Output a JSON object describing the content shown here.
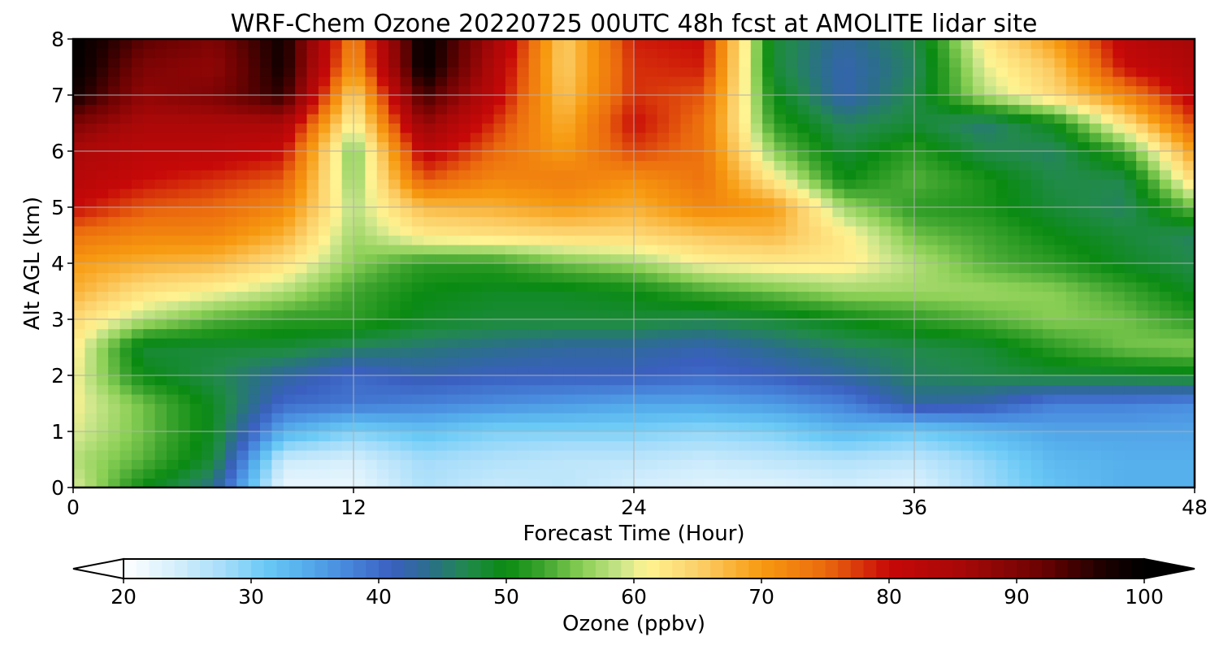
{
  "chart_data": {
    "type": "heatmap",
    "title": "WRF-Chem Ozone  20220725 00UTC 48h fcst at AMOLITE lidar site",
    "xlabel": "Forecast Time (Hour)",
    "ylabel": "Alt AGL (km)",
    "xlim": [
      0,
      48
    ],
    "ylim": [
      0,
      8
    ],
    "xticks": [
      "0",
      "12",
      "24",
      "36",
      "48"
    ],
    "yticks": [
      "0",
      "1",
      "2",
      "3",
      "4",
      "5",
      "6",
      "7",
      "8"
    ],
    "grid": true,
    "x": [
      0,
      3,
      6,
      9,
      12,
      15,
      18,
      21,
      24,
      27,
      30,
      33,
      36,
      39,
      42,
      45,
      48
    ],
    "y": [
      0,
      0.5,
      1,
      1.5,
      2,
      2.5,
      3,
      3.5,
      4,
      4.5,
      5,
      5.5,
      6,
      6.5,
      7,
      7.5,
      8
    ],
    "z": [
      [
        60,
        50,
        44,
        22,
        22,
        27,
        25,
        26,
        24,
        23,
        23,
        24,
        23,
        28,
        32,
        34,
        34
      ],
      [
        58,
        54,
        48,
        25,
        24,
        28,
        27,
        26,
        26,
        25,
        26,
        27,
        26,
        29,
        33,
        34,
        34
      ],
      [
        60,
        55,
        49,
        34,
        30,
        32,
        30,
        30,
        30,
        29,
        30,
        33,
        31,
        33,
        35,
        35,
        35
      ],
      [
        61,
        55,
        49,
        40,
        39,
        38,
        37,
        36,
        35,
        35,
        36,
        38,
        43,
        42,
        38,
        38,
        37
      ],
      [
        61,
        50,
        47,
        43,
        40,
        42,
        41,
        41,
        41,
        40,
        41,
        43,
        46,
        47,
        48,
        48,
        49
      ],
      [
        62,
        48,
        48,
        48,
        46,
        45,
        44,
        43,
        43,
        42,
        44,
        46,
        47,
        48,
        52,
        55,
        56
      ],
      [
        64,
        58,
        54,
        52,
        52,
        49,
        48,
        48,
        48,
        47,
        48,
        50,
        52,
        54,
        56,
        55,
        52
      ],
      [
        68,
        63,
        61,
        58,
        53,
        50,
        49,
        49,
        50,
        53,
        55,
        57,
        57,
        57,
        56,
        53,
        49
      ],
      [
        70,
        68,
        67,
        63,
        56,
        52,
        52,
        55,
        57,
        61,
        62,
        62,
        58,
        54,
        52,
        49,
        47
      ],
      [
        74,
        72,
        72,
        68,
        57,
        62,
        63,
        64,
        64,
        66,
        67,
        62,
        55,
        53,
        50,
        48,
        46
      ],
      [
        80,
        76,
        75,
        72,
        58,
        67,
        68,
        70,
        68,
        72,
        70,
        57,
        52,
        51,
        48,
        46,
        55
      ],
      [
        83,
        80,
        78,
        76,
        56,
        76,
        72,
        73,
        71,
        74,
        62,
        50,
        54,
        51,
        47,
        47,
        64
      ],
      [
        85,
        82,
        82,
        80,
        55,
        82,
        75,
        70,
        77,
        74,
        56,
        48,
        52,
        47,
        46,
        53,
        70
      ],
      [
        90,
        85,
        85,
        85,
        60,
        88,
        78,
        68,
        80,
        74,
        52,
        46,
        48,
        45,
        50,
        63,
        77
      ],
      [
        98,
        88,
        90,
        96,
        64,
        95,
        82,
        66,
        78,
        76,
        50,
        42,
        47,
        58,
        64,
        72,
        82
      ],
      [
        100,
        90,
        88,
        98,
        70,
        100,
        84,
        65,
        78,
        79,
        48,
        42,
        46,
        60,
        66,
        80,
        84
      ],
      [
        100,
        93,
        90,
        98,
        72,
        100,
        86,
        65,
        79,
        80,
        48,
        43,
        47,
        62,
        70,
        82,
        86
      ]
    ],
    "colorbar": {
      "label": "Ozone  (ppbv)",
      "min": 20,
      "max": 100,
      "ticks": [
        "20",
        "30",
        "40",
        "50",
        "60",
        "70",
        "80",
        "90",
        "100"
      ],
      "extend": "both",
      "stops": [
        {
          "v": 20,
          "c": "#ffffff"
        },
        {
          "v": 24,
          "c": "#d6effc"
        },
        {
          "v": 28,
          "c": "#a4dcfa"
        },
        {
          "v": 31,
          "c": "#6ccaf6"
        },
        {
          "v": 34,
          "c": "#56b0ec"
        },
        {
          "v": 37,
          "c": "#4a8ee0"
        },
        {
          "v": 41,
          "c": "#3a5fc0"
        },
        {
          "v": 44,
          "c": "#2b6e8c"
        },
        {
          "v": 47,
          "c": "#218a4a"
        },
        {
          "v": 50,
          "c": "#0a8a12"
        },
        {
          "v": 53,
          "c": "#3fa52f"
        },
        {
          "v": 56,
          "c": "#8acf55"
        },
        {
          "v": 59,
          "c": "#c9e58a"
        },
        {
          "v": 61,
          "c": "#fff392"
        },
        {
          "v": 65,
          "c": "#fcd06a"
        },
        {
          "v": 70,
          "c": "#f79a10"
        },
        {
          "v": 75,
          "c": "#eb6a0e"
        },
        {
          "v": 80,
          "c": "#c70808"
        },
        {
          "v": 86,
          "c": "#a50808"
        },
        {
          "v": 92,
          "c": "#6a0202"
        },
        {
          "v": 97,
          "c": "#1a0000"
        },
        {
          "v": 100,
          "c": "#000000"
        }
      ]
    }
  }
}
